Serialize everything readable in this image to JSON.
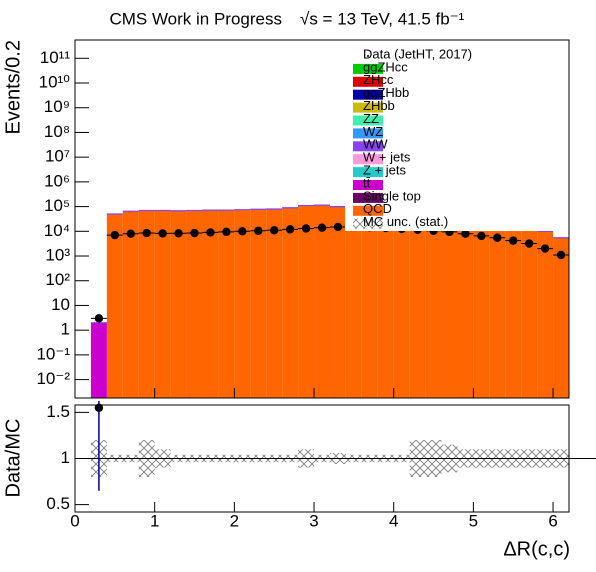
{
  "chart_data": {
    "type": "stacked_histogram",
    "title": "CMS Work in Progress",
    "subtitle": "√s = 13 TeV, 41.5 fb⁻¹",
    "x_label": "ΔR(c,c)",
    "y_label": "Events/0.2",
    "ratio_label": "Data/MC",
    "log_y": true,
    "xlim": [
      0,
      6.2
    ],
    "xticks": [
      0,
      1,
      2,
      3,
      4,
      5,
      6
    ],
    "ylim": [
      0.0018,
      550000000000
    ],
    "yticks": [
      {
        "value": 0.01,
        "label": "10⁻²"
      },
      {
        "value": 0.1,
        "label": "10⁻¹"
      },
      1,
      10,
      {
        "value": 100,
        "label": "10²"
      },
      {
        "value": 1000,
        "label": "10³"
      },
      {
        "value": 10000,
        "label": "10⁴"
      },
      {
        "value": 100000,
        "label": "10⁵"
      },
      {
        "value": 1000000,
        "label": "10⁶"
      },
      {
        "value": 10000000,
        "label": "10⁷"
      },
      {
        "value": 100000000,
        "label": "10⁸"
      },
      {
        "value": 1000000000,
        "label": "10⁹"
      },
      {
        "value": 10000000000,
        "label": "10¹⁰"
      },
      {
        "value": 100000000000,
        "label": "10¹¹"
      }
    ],
    "ratio_ylim": [
      0.42,
      1.58
    ],
    "ratio_yticks": [
      0.5,
      1,
      1.5
    ],
    "bins": [
      0.2,
      0.4,
      0.6,
      0.8,
      1.0,
      1.2,
      1.4,
      1.6,
      1.8,
      2.0,
      2.2,
      2.4,
      2.6,
      2.8,
      3.0,
      3.2,
      3.4,
      3.6,
      3.8,
      4.0,
      4.2,
      4.4,
      4.6,
      4.8,
      5.0,
      5.2,
      5.4,
      5.6,
      5.8,
      6.0,
      6.2
    ],
    "data": {
      "name": "Data (JetHT, 2017)",
      "color": "#000000",
      "values": [
        3,
        7000,
        8000,
        8500,
        8200,
        8300,
        8500,
        9000,
        9500,
        10000,
        10500,
        11000,
        12000,
        13000,
        14000,
        15000,
        15000,
        14500,
        13500,
        12500,
        11500,
        10500,
        9500,
        8000,
        6500,
        5500,
        4200,
        3200,
        2000,
        1100
      ]
    },
    "series": [
      {
        "name": "ggZHcc",
        "color": "#00cc00"
      },
      {
        "name": "ZHcc",
        "color": "#e00000"
      },
      {
        "name": "ggZHbb",
        "color": "#0000aa"
      },
      {
        "name": "ZHbb",
        "color": "#ccbb00"
      },
      {
        "name": "ZZ",
        "color": "#40eeb0"
      },
      {
        "name": "WZ",
        "color": "#3399ff"
      },
      {
        "name": "WW",
        "color": "#8844ee"
      },
      {
        "name": "W + jets",
        "color": "#ff99dd"
      },
      {
        "name": "Z + jets",
        "color": "#22cccc"
      },
      {
        "name": "tt̄",
        "color": "#cc00cc",
        "values": [
          2,
          0,
          0,
          0,
          0,
          0,
          0,
          0,
          0,
          0,
          0,
          0,
          0,
          0,
          0,
          0,
          0,
          0,
          0,
          0,
          0,
          0,
          0,
          0,
          0,
          0,
          0,
          0,
          0,
          0
        ]
      },
      {
        "name": "Single top",
        "color": "#660066"
      },
      {
        "name": "QCD",
        "color": "#ff6600",
        "values": [
          0,
          50000,
          65000,
          70000,
          70000,
          68000,
          70000,
          72000,
          72000,
          75000,
          78000,
          80000,
          90000,
          110000,
          115000,
          100000,
          100000,
          95000,
          90000,
          80000,
          70000,
          60000,
          50000,
          40000,
          32000,
          25000,
          18000,
          12000,
          10000,
          5500
        ]
      }
    ],
    "mc_unc": {
      "name": "MC unc. (stat.)",
      "values": [
        0.2,
        0.04,
        0.04,
        0.2,
        0.1,
        0.04,
        0.04,
        0.04,
        0.04,
        0.04,
        0.04,
        0.04,
        0.04,
        0.1,
        0.04,
        0.06,
        0.04,
        0.04,
        0.04,
        0.04,
        0.2,
        0.2,
        0.15,
        0.1,
        0.1,
        0.1,
        0.1,
        0.1,
        0.1,
        0.1
      ]
    },
    "ratio_values": [
      1.55,
      null,
      null,
      null,
      null,
      null,
      null,
      null,
      null,
      null,
      null,
      null,
      null,
      null,
      null,
      null,
      null,
      null,
      null,
      null,
      null,
      null,
      null,
      null,
      null,
      null,
      null,
      null,
      null,
      null
    ],
    "ratio_errors": [
      0.9,
      null,
      null,
      null,
      null,
      null,
      null,
      null,
      null,
      null,
      null,
      null,
      null,
      null,
      null,
      null,
      null,
      null,
      null,
      null,
      null,
      null,
      null,
      null,
      null,
      null,
      null,
      null,
      null,
      null
    ]
  }
}
